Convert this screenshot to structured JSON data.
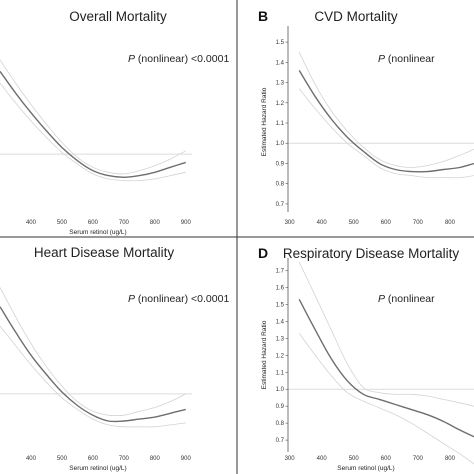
{
  "chart_data": [
    {
      "type": "line",
      "panel_letter": "",
      "title": "Overall Mortality",
      "p_value": {
        "label": "P",
        "rest": " (nonlinear) <0.0001"
      },
      "xlabel": "Serum retinol (ug/L)",
      "ylabel": "",
      "x_ticks": [
        "",
        "400",
        "500",
        "600",
        "700",
        "800",
        "900"
      ],
      "x_tick_values": [
        300,
        400,
        500,
        600,
        700,
        800,
        900
      ],
      "y_ticks": [],
      "xlim": [
        300,
        920
      ],
      "ylim": [
        0.65,
        1.75
      ],
      "reference_line": 1.0,
      "series": [
        {
          "role": "estimate",
          "x": [
            300,
            350,
            400,
            450,
            500,
            550,
            600,
            650,
            700,
            750,
            800,
            850,
            900
          ],
          "y": [
            1.5,
            1.37,
            1.25,
            1.14,
            1.04,
            0.96,
            0.9,
            0.87,
            0.86,
            0.87,
            0.89,
            0.92,
            0.95
          ]
        },
        {
          "role": "ci-upper",
          "x": [
            300,
            350,
            400,
            450,
            500,
            550,
            600,
            650,
            700,
            750,
            800,
            850,
            900
          ],
          "y": [
            1.57,
            1.43,
            1.3,
            1.18,
            1.07,
            0.98,
            0.92,
            0.89,
            0.88,
            0.9,
            0.93,
            0.97,
            1.02
          ]
        },
        {
          "role": "ci-lower",
          "x": [
            300,
            350,
            400,
            450,
            500,
            550,
            600,
            650,
            700,
            750,
            800,
            850,
            900
          ],
          "y": [
            1.43,
            1.31,
            1.2,
            1.1,
            1.01,
            0.94,
            0.88,
            0.85,
            0.84,
            0.84,
            0.85,
            0.87,
            0.89
          ]
        }
      ]
    },
    {
      "type": "line",
      "panel_letter": "B",
      "title": "CVD Mortality",
      "p_value": {
        "label": "P",
        "rest": " (nonlinear"
      },
      "xlabel": "",
      "ylabel": "Estimated Hazard Ratio",
      "x_ticks": [
        "300",
        "400",
        "500",
        "600",
        "700",
        "800"
      ],
      "x_tick_values": [
        300,
        400,
        500,
        600,
        700,
        800
      ],
      "y_ticks": [
        "0.7",
        "0.8",
        "0.9",
        "1.0",
        "1.1",
        "1.2",
        "1.3",
        "1.4",
        "1.5"
      ],
      "xlim": [
        295,
        875
      ],
      "ylim": [
        0.66,
        1.56
      ],
      "reference_line": 1.0,
      "series": [
        {
          "role": "estimate",
          "x": [
            330,
            380,
            430,
            480,
            530,
            580,
            630,
            680,
            730,
            780,
            830,
            875
          ],
          "y": [
            1.36,
            1.23,
            1.12,
            1.03,
            0.96,
            0.9,
            0.87,
            0.86,
            0.86,
            0.87,
            0.88,
            0.9
          ]
        },
        {
          "role": "ci-upper",
          "x": [
            330,
            380,
            430,
            480,
            530,
            580,
            630,
            680,
            730,
            780,
            830,
            875
          ],
          "y": [
            1.45,
            1.29,
            1.16,
            1.06,
            0.98,
            0.92,
            0.89,
            0.88,
            0.89,
            0.91,
            0.94,
            0.97
          ]
        },
        {
          "role": "ci-lower",
          "x": [
            330,
            380,
            430,
            480,
            530,
            580,
            630,
            680,
            730,
            780,
            830,
            875
          ],
          "y": [
            1.27,
            1.17,
            1.08,
            1.0,
            0.94,
            0.88,
            0.85,
            0.84,
            0.83,
            0.83,
            0.83,
            0.84
          ]
        }
      ]
    },
    {
      "type": "line",
      "panel_letter": "",
      "title": "Heart Disease Mortality",
      "p_value": {
        "label": "P",
        "rest": " (nonlinear) <0.0001"
      },
      "xlabel": "Serum retinol (ug/L)",
      "ylabel": "",
      "x_ticks": [
        "",
        "400",
        "500",
        "600",
        "700",
        "800",
        "900"
      ],
      "x_tick_values": [
        300,
        400,
        500,
        600,
        700,
        800,
        900
      ],
      "y_ticks": [],
      "xlim": [
        300,
        920
      ],
      "ylim": [
        0.7,
        1.65
      ],
      "reference_line": 1.0,
      "series": [
        {
          "role": "estimate",
          "x": [
            300,
            350,
            400,
            450,
            500,
            550,
            600,
            650,
            700,
            750,
            800,
            850,
            900
          ],
          "y": [
            1.45,
            1.32,
            1.2,
            1.1,
            1.01,
            0.94,
            0.89,
            0.86,
            0.86,
            0.87,
            0.88,
            0.9,
            0.92
          ]
        },
        {
          "role": "ci-upper",
          "x": [
            300,
            350,
            400,
            450,
            500,
            550,
            600,
            650,
            700,
            750,
            800,
            850,
            900
          ],
          "y": [
            1.55,
            1.4,
            1.26,
            1.14,
            1.04,
            0.96,
            0.91,
            0.89,
            0.89,
            0.91,
            0.93,
            0.96,
            1.0
          ]
        },
        {
          "role": "ci-lower",
          "x": [
            300,
            350,
            400,
            450,
            500,
            550,
            600,
            650,
            700,
            750,
            800,
            850,
            900
          ],
          "y": [
            1.35,
            1.25,
            1.15,
            1.06,
            0.98,
            0.92,
            0.87,
            0.84,
            0.83,
            0.83,
            0.83,
            0.84,
            0.85
          ]
        }
      ]
    },
    {
      "type": "line",
      "panel_letter": "D",
      "title": "Respiratory Disease Mortality",
      "p_value": {
        "label": "P",
        "rest": " (nonlinear"
      },
      "xlabel": "Serum retinol (ug/L)",
      "ylabel": "Estimated Hazard Ratio",
      "x_ticks": [
        "300",
        "400",
        "500",
        "600",
        "700",
        "800"
      ],
      "x_tick_values": [
        300,
        400,
        500,
        600,
        700,
        800
      ],
      "y_ticks": [
        "0.7",
        "0.8",
        "0.9",
        "1.0",
        "1.1",
        "1.2",
        "1.3",
        "1.4",
        "1.5",
        "1.6",
        "1.7"
      ],
      "xlim": [
        295,
        875
      ],
      "ylim": [
        0.63,
        1.75
      ],
      "reference_line": 1.0,
      "series": [
        {
          "role": "estimate",
          "x": [
            330,
            380,
            430,
            480,
            530,
            580,
            630,
            680,
            730,
            780,
            830,
            875
          ],
          "y": [
            1.53,
            1.35,
            1.18,
            1.05,
            0.97,
            0.94,
            0.91,
            0.88,
            0.85,
            0.81,
            0.76,
            0.72
          ]
        },
        {
          "role": "ci-upper",
          "x": [
            330,
            380,
            430,
            480,
            530,
            580,
            630,
            680,
            730,
            780,
            830,
            875
          ],
          "y": [
            1.75,
            1.55,
            1.35,
            1.15,
            1.01,
            0.98,
            0.97,
            0.97,
            0.96,
            0.94,
            0.92,
            0.9
          ]
        },
        {
          "role": "ci-lower",
          "x": [
            330,
            380,
            430,
            480,
            530,
            580,
            630,
            680,
            730,
            780,
            830,
            875
          ],
          "y": [
            1.33,
            1.2,
            1.08,
            0.98,
            0.93,
            0.89,
            0.85,
            0.8,
            0.74,
            0.68,
            0.62,
            0.56
          ]
        }
      ]
    }
  ],
  "colors": {
    "estimate_line": "#6e6e6e",
    "ci_line": "#d3d3d3",
    "reference_line": "#dcdcdc",
    "frame": "#333333",
    "axis": "#555555"
  }
}
